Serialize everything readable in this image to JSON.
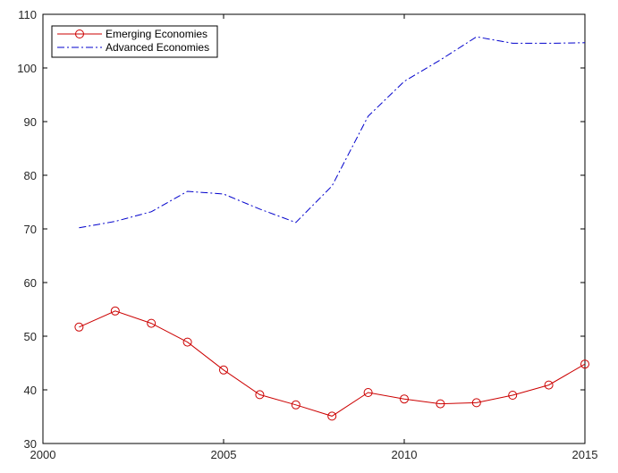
{
  "chart_data": {
    "type": "line",
    "x_ticks": [
      "2000",
      "2005",
      "2010",
      "2015"
    ],
    "y_ticks": [
      "30",
      "40",
      "50",
      "60",
      "70",
      "80",
      "90",
      "100",
      "110"
    ],
    "xlim": [
      2000,
      2015
    ],
    "ylim": [
      30,
      110
    ],
    "grid": false,
    "legend_position": "top-left",
    "series": [
      {
        "name": "Emerging Economies",
        "color": "#cc0000",
        "style": "solid",
        "marker": "circle",
        "x": [
          2001,
          2002,
          2003,
          2004,
          2005,
          2006,
          2007,
          2008,
          2009,
          2010,
          2011,
          2012,
          2013,
          2014,
          2015
        ],
        "values": [
          51.7,
          54.7,
          52.4,
          48.9,
          43.7,
          39.1,
          37.2,
          35.1,
          39.5,
          38.3,
          37.4,
          37.6,
          39.0,
          40.9,
          44.8
        ]
      },
      {
        "name": "Advanced Economies",
        "color": "#0000cc",
        "style": "dash-dot",
        "marker": "none",
        "x": [
          2001,
          2002,
          2003,
          2004,
          2005,
          2006,
          2007,
          2008,
          2009,
          2010,
          2011,
          2012,
          2013,
          2014,
          2015
        ],
        "values": [
          70.2,
          71.4,
          73.2,
          77.0,
          76.5,
          73.7,
          71.2,
          78.0,
          91.0,
          97.5,
          101.5,
          105.8,
          104.6,
          104.6,
          104.7
        ]
      }
    ]
  }
}
